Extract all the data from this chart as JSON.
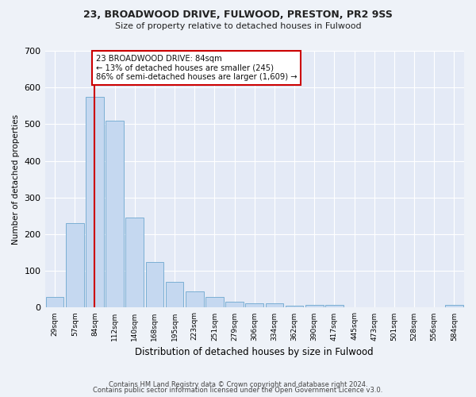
{
  "title1": "23, BROADWOOD DRIVE, FULWOOD, PRESTON, PR2 9SS",
  "title2": "Size of property relative to detached houses in Fulwood",
  "xlabel": "Distribution of detached houses by size in Fulwood",
  "ylabel": "Number of detached properties",
  "categories": [
    "29sqm",
    "57sqm",
    "84sqm",
    "112sqm",
    "140sqm",
    "168sqm",
    "195sqm",
    "223sqm",
    "251sqm",
    "279sqm",
    "306sqm",
    "334sqm",
    "362sqm",
    "390sqm",
    "417sqm",
    "445sqm",
    "473sqm",
    "501sqm",
    "528sqm",
    "556sqm",
    "584sqm"
  ],
  "values": [
    30,
    230,
    575,
    510,
    245,
    125,
    70,
    45,
    28,
    17,
    12,
    12,
    6,
    8,
    8,
    0,
    0,
    0,
    0,
    0,
    7
  ],
  "bar_color": "#c5d8f0",
  "bar_edge_color": "#7bafd4",
  "highlight_index": 2,
  "highlight_line_color": "#cc0000",
  "annotation_text": "23 BROADWOOD DRIVE: 84sqm\n← 13% of detached houses are smaller (245)\n86% of semi-detached houses are larger (1,609) →",
  "annotation_box_color": "#ffffff",
  "annotation_border_color": "#cc0000",
  "ylim": [
    0,
    700
  ],
  "yticks": [
    0,
    100,
    200,
    300,
    400,
    500,
    600,
    700
  ],
  "footer1": "Contains HM Land Registry data © Crown copyright and database right 2024.",
  "footer2": "Contains public sector information licensed under the Open Government Licence v3.0.",
  "bg_color": "#eef2f8",
  "plot_bg_color": "#e4eaf6"
}
